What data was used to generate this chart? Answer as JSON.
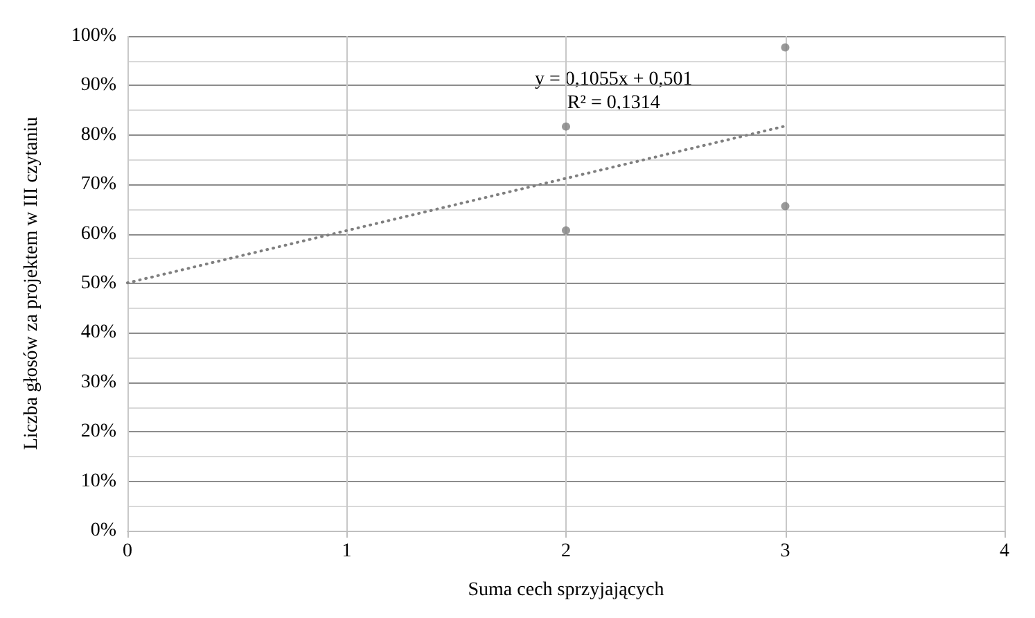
{
  "chart_data": {
    "type": "scatter",
    "xlabel": "Suma cech sprzyjających",
    "ylabel": "Liczba głosów za projektem w III czytaniu",
    "series": [
      {
        "type": "scatter",
        "color": "#7f7f7f",
        "x": [
          2,
          2,
          3,
          3
        ],
        "values": [
          81.7,
          60.7,
          97.7,
          65.6
        ],
        "marker": "circle"
      },
      {
        "type": "line",
        "color": "#7f7f7f",
        "x": [
          0,
          3
        ],
        "values": [
          50.1,
          81.8
        ],
        "line_style": "dotted",
        "marker": "none"
      }
    ],
    "annotations": [
      "y = 0,1055x + 0,501\nR² = 0,1314"
    ],
    "xlim": [
      0,
      4
    ],
    "xticks": [
      0,
      1,
      2,
      3,
      4
    ],
    "ylim": [
      0,
      100
    ],
    "yticks": [
      {
        "value": 0,
        "label": "0%"
      },
      {
        "value": 10,
        "label": "10%"
      },
      {
        "value": 20,
        "label": "20%"
      },
      {
        "value": 30,
        "label": "30%"
      },
      {
        "value": 40,
        "label": "40%"
      },
      {
        "value": 50,
        "label": "50%"
      },
      {
        "value": 60,
        "label": "60%"
      },
      {
        "value": 70,
        "label": "70%"
      },
      {
        "value": 80,
        "label": "80%"
      },
      {
        "value": 90,
        "label": "90%"
      },
      {
        "value": 100,
        "label": "100%"
      }
    ],
    "grid": true
  }
}
